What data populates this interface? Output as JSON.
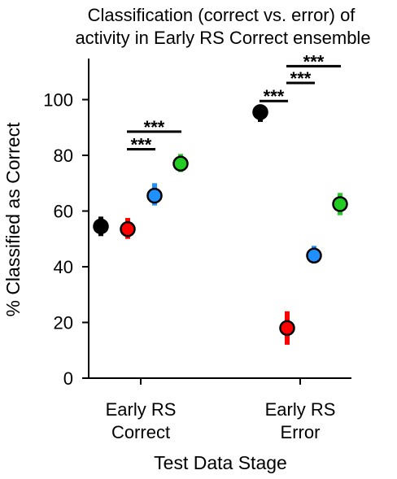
{
  "chart_data": {
    "type": "scatter",
    "title_lines": [
      "Classification (correct vs. error) of",
      "activity in Early RS Correct ensemble"
    ],
    "xlabel": "Test Data Stage",
    "ylabel": "% Classified as Correct",
    "ylim": [
      0,
      115
    ],
    "yticks": [
      0,
      20,
      40,
      60,
      80,
      100
    ],
    "ytick_labels": [
      "0",
      "20",
      "40",
      "60",
      "80",
      "100"
    ],
    "categories": [
      {
        "lines": [
          "Early RS",
          "Correct"
        ]
      },
      {
        "lines": [
          "Early RS",
          "Error"
        ]
      }
    ],
    "series": [
      {
        "color": "#000000",
        "values": [
          54.5,
          95.5
        ],
        "err_low": [
          51,
          92
        ],
        "err_high": [
          58,
          98
        ]
      },
      {
        "color": "#ff0000",
        "values": [
          53.5,
          18
        ],
        "err_low": [
          50,
          12
        ],
        "err_high": [
          57.5,
          24
        ]
      },
      {
        "color": "#1e90ff",
        "values": [
          65.5,
          44
        ],
        "err_low": [
          62,
          41.5
        ],
        "err_high": [
          70,
          47.5
        ]
      },
      {
        "color": "#22cc22",
        "values": [
          77,
          62.5
        ],
        "err_low": [
          74,
          58.5
        ],
        "err_high": [
          80.5,
          66.5
        ]
      }
    ],
    "significance": [
      {
        "group": 0,
        "from": 1,
        "to": 2,
        "y": 82.2,
        "label": "***"
      },
      {
        "group": 0,
        "from": 1,
        "to": 3,
        "y": 88.5,
        "label": "***"
      },
      {
        "group": 1,
        "from": 0,
        "to": 1,
        "y": 99.5,
        "label": "***"
      },
      {
        "group": 1,
        "from": 1,
        "to": 2,
        "y": 106,
        "label": "***"
      },
      {
        "group": 1,
        "from": 1,
        "to": 3,
        "y": 112,
        "label": "***"
      }
    ],
    "legend": "none",
    "grid": false
  }
}
